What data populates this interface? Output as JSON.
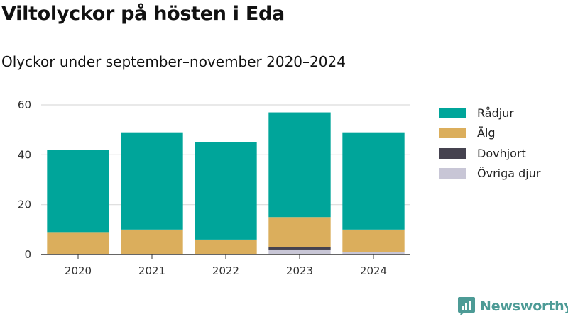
{
  "header": {
    "title": "Viltolyckor på hösten i Eda",
    "subtitle": "Olyckor under september–november 2020–2024"
  },
  "brand": {
    "name": "Newsworthy",
    "icon": "newsworthy-logo-icon",
    "color": "#4d9b96"
  },
  "chart_data": {
    "type": "bar",
    "stacked": true,
    "categories": [
      "2020",
      "2021",
      "2022",
      "2023",
      "2024"
    ],
    "series": [
      {
        "name": "Övriga djur",
        "color": "#c8c6d6",
        "values": [
          0,
          0,
          0,
          2,
          1
        ]
      },
      {
        "name": "Dovhjort",
        "color": "#45424f",
        "values": [
          0,
          0,
          0,
          1,
          0
        ]
      },
      {
        "name": "Älg",
        "color": "#dbae5c",
        "values": [
          9,
          10,
          6,
          12,
          9
        ]
      },
      {
        "name": "Rådjur",
        "color": "#00a59a",
        "values": [
          33,
          39,
          39,
          42,
          39
        ]
      }
    ],
    "legend_order": [
      "Rådjur",
      "Älg",
      "Dovhjort",
      "Övriga djur"
    ],
    "ylim": [
      0,
      60
    ],
    "yticks": [
      0,
      20,
      40,
      60
    ],
    "grid": true,
    "legend_position": "right"
  }
}
